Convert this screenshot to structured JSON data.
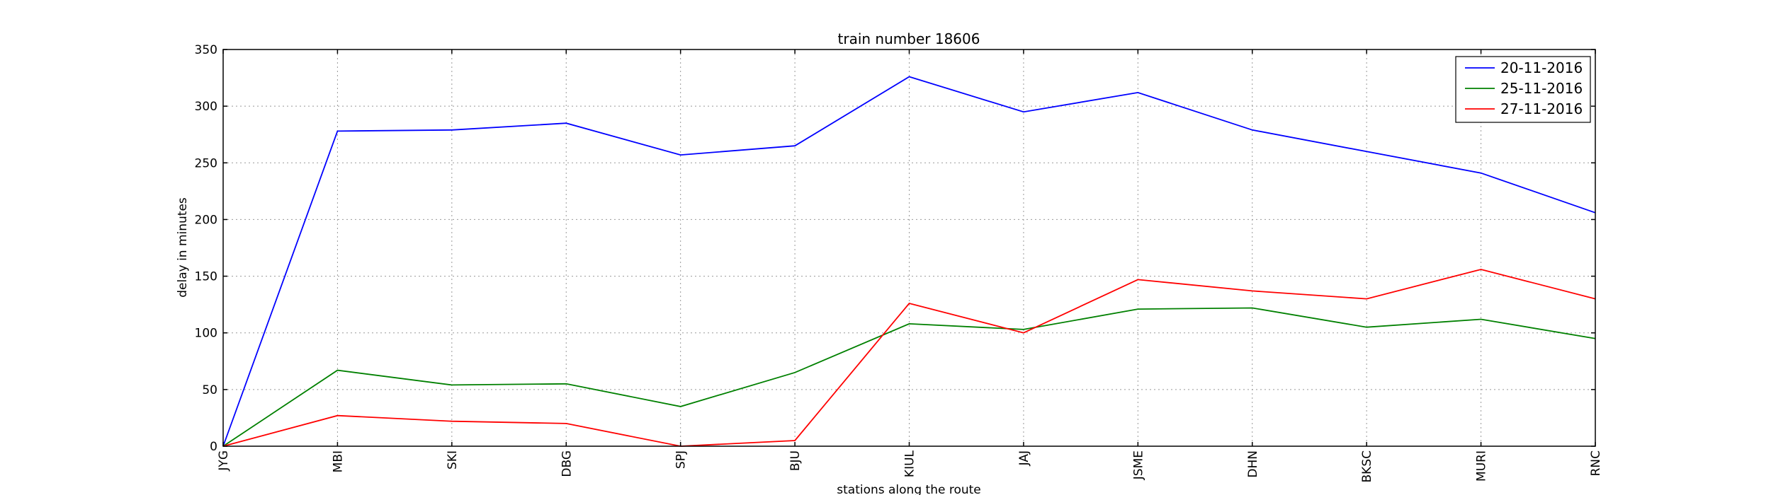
{
  "chart_data": {
    "type": "line",
    "title": "train number 18606",
    "xlabel": "stations along the route",
    "ylabel": "delay in minutes",
    "categories": [
      "JYG",
      "MBI",
      "SKI",
      "DBG",
      "SPJ",
      "BJU",
      "KIUL",
      "JAJ",
      "JSME",
      "DHN",
      "BKSC",
      "MURI",
      "RNC"
    ],
    "ylim": [
      0,
      350
    ],
    "yticks": [
      0,
      50,
      100,
      150,
      200,
      250,
      300,
      350
    ],
    "grid": true,
    "legend_position": "top-right",
    "series": [
      {
        "name": "20-11-2016",
        "color": "#0000ff",
        "values": [
          0,
          278,
          279,
          285,
          257,
          265,
          326,
          295,
          312,
          279,
          260,
          241,
          206
        ]
      },
      {
        "name": "25-11-2016",
        "color": "#008000",
        "values": [
          0,
          67,
          54,
          55,
          35,
          65,
          108,
          103,
          121,
          122,
          105,
          112,
          95
        ]
      },
      {
        "name": "27-11-2016",
        "color": "#ff0000",
        "values": [
          0,
          27,
          22,
          20,
          0,
          5,
          126,
          100,
          147,
          137,
          130,
          156,
          130
        ]
      }
    ]
  }
}
